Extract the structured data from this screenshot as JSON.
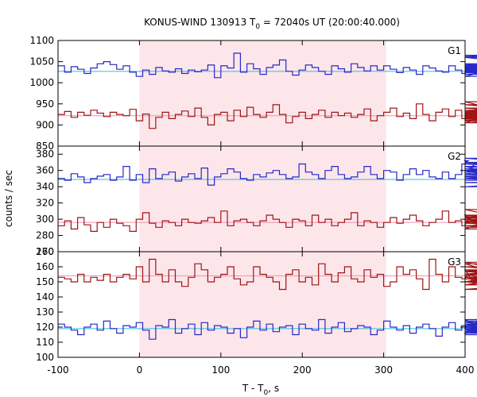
{
  "chart_data": {
    "type": "line",
    "title_main": "KONUS-WIND 130913 T",
    "title_sub": "0",
    "title_rest": " = 72040s UT (20:00:40.000)",
    "xlabel_main": "T - T",
    "xlabel_sub": "0",
    "xlabel_rest": ", s",
    "ylabel": "counts / sec",
    "xlim": [
      -100,
      400
    ],
    "x_ticks": [
      "-100",
      "0",
      "100",
      "200",
      "300",
      "400"
    ],
    "shaded_interval": [
      0,
      303
    ],
    "bin_width_s": 8,
    "colors": {
      "blue": "#2828c8",
      "red": "#a01414",
      "cyan": "#36b8e0",
      "pink": "#f08fb0",
      "shade": "#fce6ea"
    },
    "panels": [
      {
        "label": "G1",
        "ylim": [
          850,
          1100
        ],
        "y_ticks": [
          "850",
          "900",
          "950",
          "1000",
          "1050",
          "1100"
        ],
        "background": [
          {
            "name": "blue",
            "level": 1027
          },
          {
            "name": "red",
            "level": 922
          }
        ],
        "series": [
          {
            "color": "blue",
            "values": [
              1040,
              1025,
              1038,
              1032,
              1022,
              1035,
              1045,
              1050,
              1043,
              1032,
              1040,
              1025,
              1015,
              1030,
              1020,
              1036,
              1028,
              1025,
              1033,
              1022,
              1030,
              1026,
              1030,
              1042,
              1012,
              1040,
              1035,
              1070,
              1025,
              1045,
              1033,
              1020,
              1036,
              1042,
              1054,
              1027,
              1018,
              1030,
              1042,
              1036,
              1027,
              1020,
              1040,
              1033,
              1025,
              1045,
              1036,
              1028,
              1040,
              1030,
              1040,
              1032,
              1024,
              1036,
              1030,
              1020,
              1040,
              1035,
              1028,
              1025,
              1040,
              1030,
              1022,
              1030,
              1035,
              1015,
              1028,
              1036,
              1045,
              1030,
              1026,
              1035,
              1024,
              1040,
              1060,
              1040,
              1030,
              1042,
              1025,
              1035,
              1032,
              1020,
              1042,
              1036,
              1062,
              1040,
              1032,
              1025,
              1045,
              1036,
              1042,
              1033,
              1025,
              1035,
              1040,
              1026,
              1032,
              1030,
              1038,
              1030,
              1040,
              1045,
              1035,
              1024,
              1038,
              1030,
              1028,
              1032,
              1030,
              1042,
              1026,
              1065,
              1038,
              1030
            ]
          },
          {
            "color": "red",
            "values": [
              925,
              932,
              918,
              930,
              923,
              935,
              928,
              920,
              930,
              925,
              922,
              937,
              910,
              926,
              892,
              918,
              930,
              915,
              925,
              933,
              920,
              940,
              918,
              900,
              925,
              930,
              910,
              935,
              920,
              942,
              925,
              918,
              930,
              948,
              925,
              905,
              920,
              930,
              915,
              925,
              935,
              918,
              930,
              922,
              928,
              918,
              925,
              938,
              910,
              922,
              930,
              940,
              920,
              928,
              915,
              950,
              925,
              910,
              930,
              938,
              920,
              935,
              915,
              925,
              918,
              932,
              905,
              928,
              955,
              930,
              920,
              928,
              916,
              935,
              925,
              910,
              940,
              920,
              930,
              948,
              925,
              915,
              935,
              920,
              930,
              925,
              905,
              935,
              922,
              930,
              925,
              940,
              918,
              930,
              922,
              912,
              928,
              920,
              935,
              925,
              930,
              928,
              918,
              935,
              925,
              930,
              920,
              928,
              922,
              932,
              925,
              926,
              930,
              924
            ]
          }
        ]
      },
      {
        "label": "G2",
        "ylim": [
          260,
          390
        ],
        "y_ticks": [
          "260",
          "280",
          "300",
          "320",
          "340",
          "360",
          "380"
        ],
        "background": [
          {
            "name": "blue",
            "level": 349
          },
          {
            "name": "red",
            "level": 296
          }
        ],
        "series": [
          {
            "color": "blue",
            "values": [
              350,
              348,
              356,
              352,
              345,
              350,
              353,
              355,
              348,
              352,
              365,
              348,
              355,
              345,
              362,
              350,
              355,
              358,
              347,
              352,
              356,
              350,
              363,
              342,
              352,
              356,
              362,
              358,
              350,
              348,
              355,
              352,
              357,
              360,
              355,
              350,
              352,
              368,
              358,
              355,
              350,
              360,
              365,
              355,
              350,
              352,
              358,
              365,
              355,
              350,
              360,
              358,
              348,
              355,
              362,
              355,
              360,
              352,
              350,
              358,
              350,
              355,
              368,
              372,
              365,
              360,
              358,
              360,
              350,
              355,
              375,
              370,
              365,
              360,
              368,
              362,
              355,
              350,
              358,
              352,
              360,
              355,
              352,
              350,
              355,
              370,
              360,
              358,
              348,
              352,
              355,
              350,
              340,
              355,
              348,
              352,
              350,
              345,
              352,
              356,
              350,
              348,
              355,
              352,
              348,
              353,
              350,
              352,
              355,
              348,
              352,
              362,
              348,
              350
            ]
          },
          {
            "color": "red",
            "values": [
              292,
              298,
              288,
              302,
              293,
              285,
              296,
              290,
              300,
              295,
              292,
              285,
              300,
              308,
              295,
              290,
              298,
              296,
              292,
              300,
              296,
              295,
              298,
              302,
              296,
              310,
              292,
              298,
              300,
              296,
              292,
              298,
              305,
              300,
              296,
              290,
              300,
              298,
              292,
              305,
              296,
              300,
              292,
              296,
              300,
              308,
              292,
              298,
              296,
              290,
              296,
              302,
              295,
              300,
              305,
              298,
              292,
              296,
              300,
              310,
              296,
              298,
              292,
              305,
              296,
              302,
              295,
              298,
              300,
              296,
              288,
              312,
              295,
              300,
              292,
              296,
              303,
              295,
              298,
              292,
              296,
              300,
              296,
              305,
              292,
              290,
              298,
              296,
              292,
              300,
              296,
              298,
              295,
              302,
              292,
              296,
              300,
              295,
              290,
              296,
              300,
              298,
              295,
              292,
              296,
              300,
              298,
              292,
              296,
              300,
              295,
              298,
              302,
              296
            ]
          }
        ]
      },
      {
        "label": "G3",
        "ylim": [
          100,
          170
        ],
        "y_ticks": [
          "100",
          "110",
          "120",
          "130",
          "140",
          "150",
          "160",
          "170"
        ],
        "background": [
          {
            "name": "red",
            "level": 154
          },
          {
            "name": "blue",
            "level": 119
          }
        ],
        "series": [
          {
            "color": "red",
            "values": [
              153,
              152,
              150,
              155,
              150,
              153,
              151,
              155,
              150,
              153,
              155,
              152,
              160,
              150,
              165,
              155,
              150,
              158,
              150,
              147,
              153,
              162,
              158,
              150,
              153,
              155,
              160,
              152,
              148,
              150,
              160,
              155,
              153,
              150,
              145,
              155,
              158,
              150,
              153,
              148,
              162,
              155,
              150,
              156,
              160,
              152,
              150,
              158,
              153,
              155,
              147,
              150,
              160,
              155,
              158,
              152,
              145,
              165,
              155,
              150,
              160,
              153,
              152,
              158,
              148,
              150,
              153,
              162,
              155,
              150,
              148,
              155,
              158,
              152,
              150,
              160,
              155,
              163,
              150,
              155,
              158,
              150,
              153,
              148,
              155,
              150,
              160,
              152,
              157,
              150,
              153,
              158,
              150,
              145,
              155,
              152,
              148,
              150,
              153,
              157,
              150,
              152,
              148,
              155,
              153,
              148,
              152,
              155,
              150,
              158,
              153,
              148,
              155,
              150
            ]
          },
          {
            "color": "blue",
            "values": [
              122,
              120,
              118,
              115,
              120,
              122,
              118,
              124,
              119,
              116,
              121,
              120,
              123,
              118,
              112,
              121,
              120,
              125,
              116,
              119,
              122,
              115,
              123,
              118,
              121,
              120,
              116,
              119,
              113,
              120,
              124,
              118,
              122,
              117,
              120,
              121,
              115,
              122,
              119,
              118,
              125,
              116,
              120,
              123,
              117,
              119,
              121,
              120,
              115,
              118,
              124,
              120,
              118,
              121,
              116,
              120,
              122,
              119,
              114,
              120,
              123,
              118,
              121,
              116,
              120,
              125,
              118,
              122,
              119,
              117,
              121,
              124,
              118,
              120,
              116,
              122,
              119,
              121,
              118,
              120,
              123,
              117,
              121,
              119,
              116,
              120,
              122,
              118,
              121,
              119,
              120,
              117,
              122,
              118,
              121,
              120,
              119,
              118,
              122,
              120,
              117,
              121,
              119,
              123,
              116,
              120,
              122,
              118,
              120,
              121,
              119,
              117,
              122,
              115
            ]
          }
        ]
      }
    ]
  }
}
